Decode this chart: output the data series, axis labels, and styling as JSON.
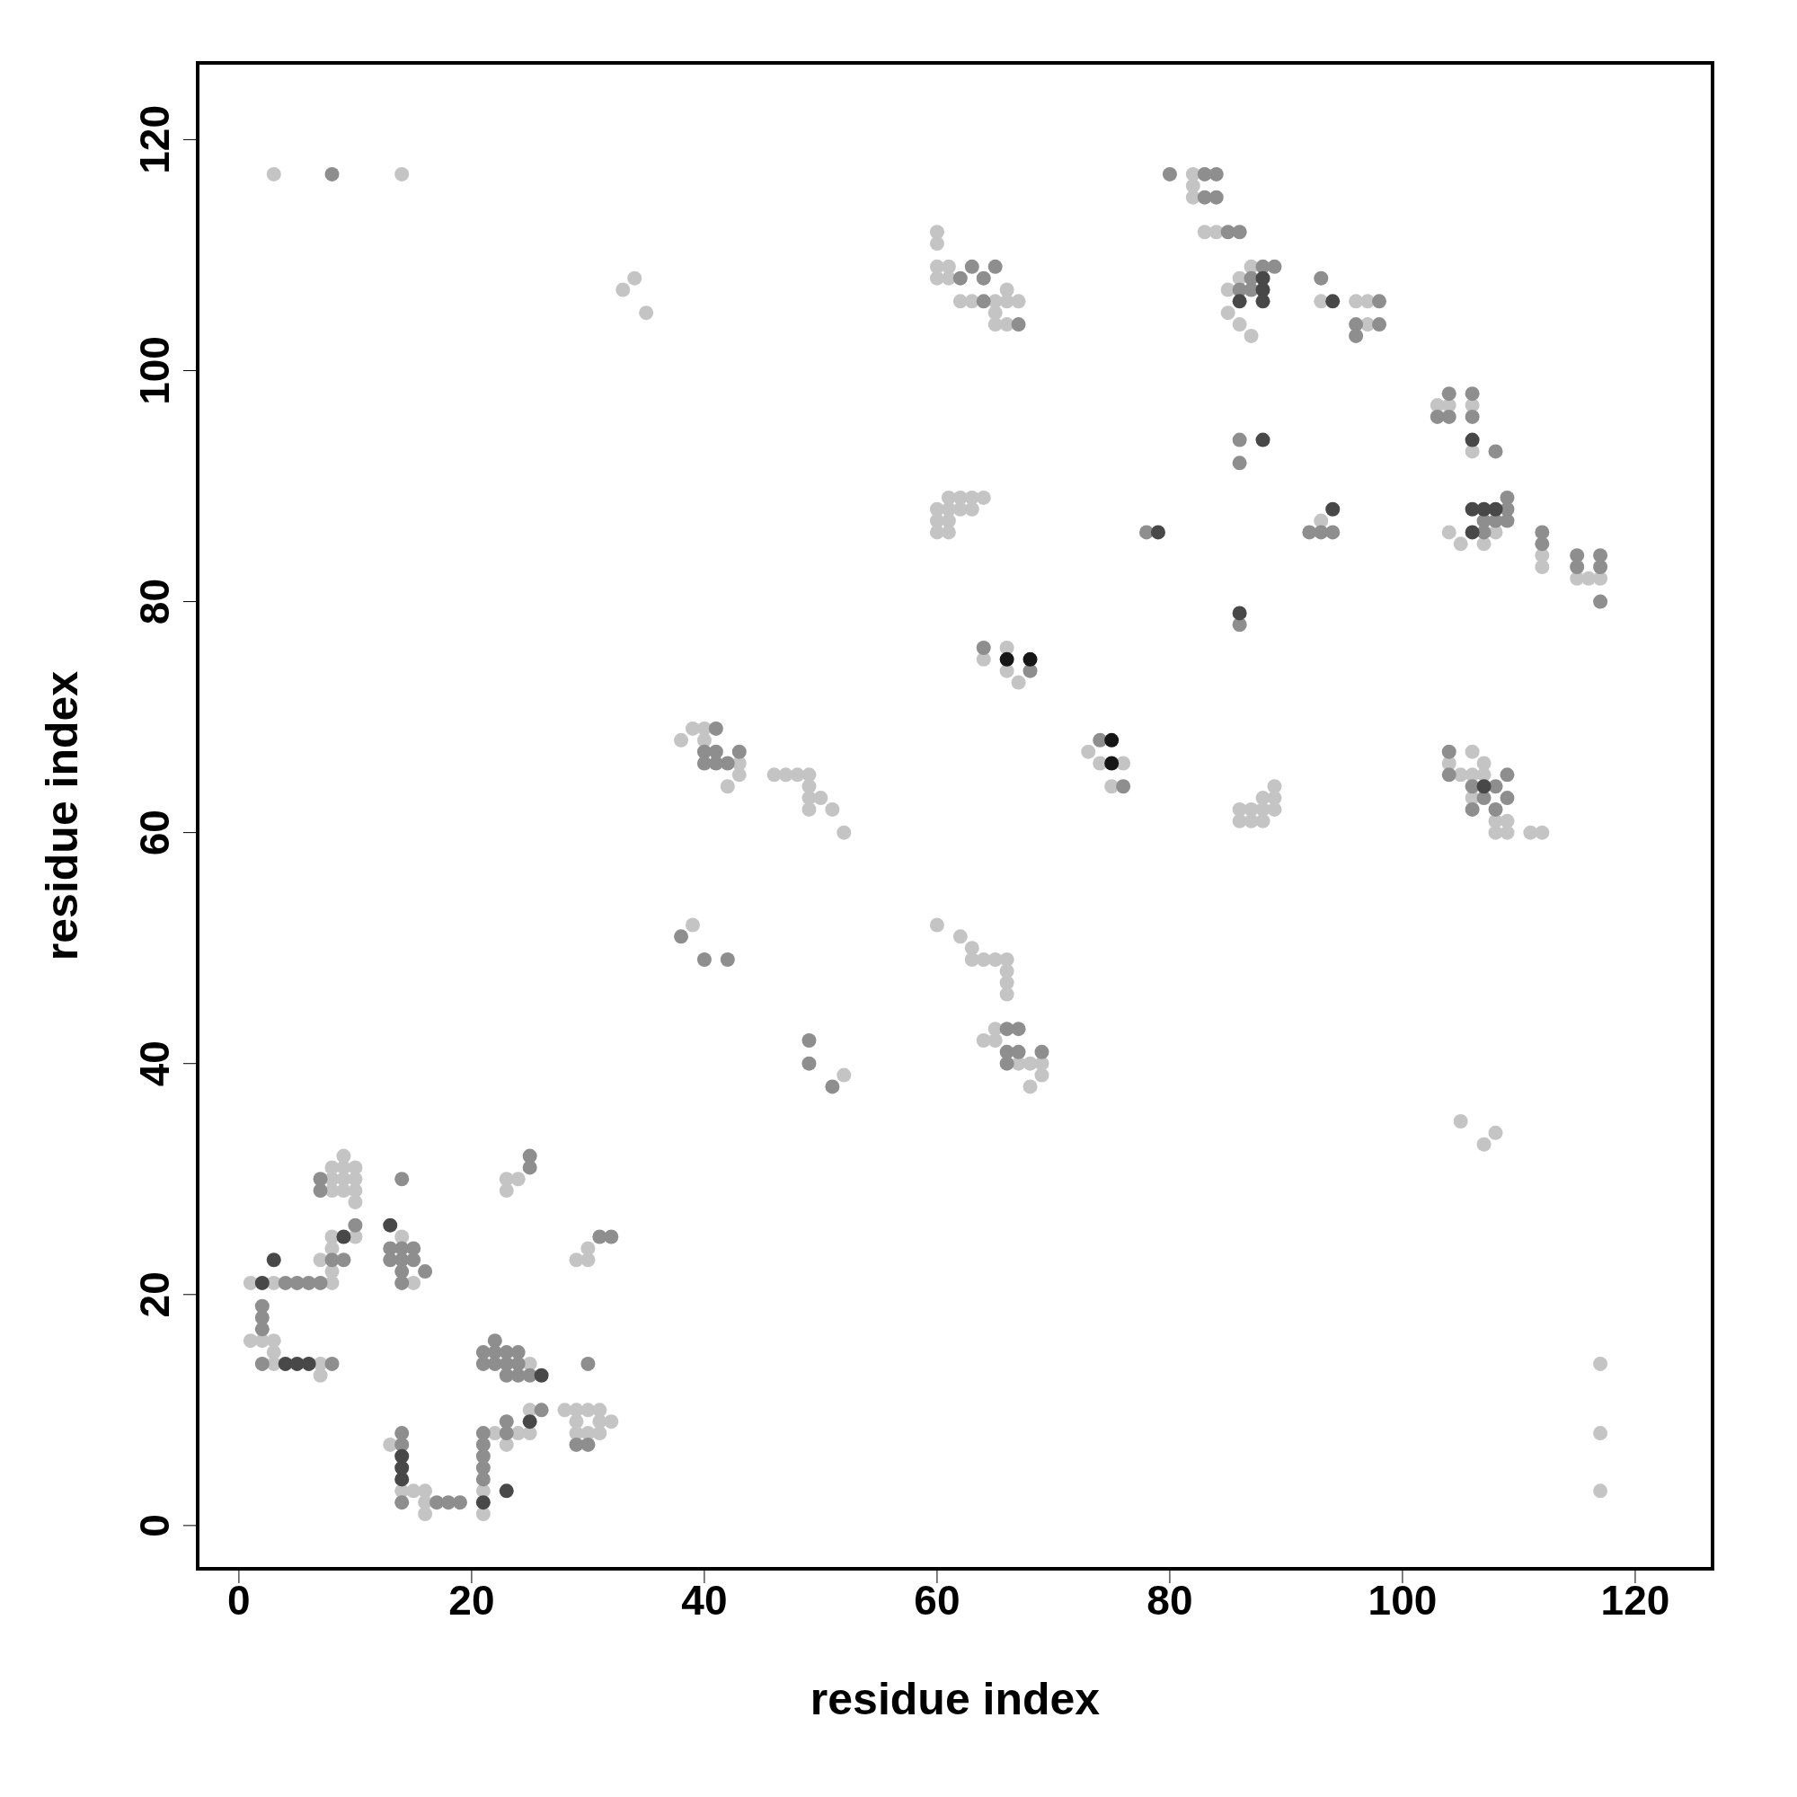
{
  "chart_data": {
    "type": "scatter",
    "xlabel": "residue index",
    "ylabel": "residue index",
    "xlim": [
      -3.7,
      126.8
    ],
    "ylim": [
      -3.9,
      126.8
    ],
    "xticks": [
      0,
      20,
      40,
      60,
      80,
      100,
      120
    ],
    "yticks": [
      0,
      20,
      40,
      60,
      80,
      100,
      120
    ],
    "grid": false,
    "marker": "circle",
    "series": [
      {
        "color": "#c4c4c4",
        "x": [
          3,
          14,
          33,
          34,
          35,
          60,
          60,
          60,
          60,
          61,
          61,
          62,
          63,
          65,
          65,
          65,
          66,
          66,
          66,
          67,
          82,
          82,
          82,
          83,
          84,
          85,
          85,
          86,
          86,
          87,
          93,
          96,
          97,
          97,
          87,
          103,
          104,
          106,
          106,
          104,
          105,
          107,
          108,
          112,
          112,
          115,
          116,
          117,
          93,
          60,
          60,
          60,
          61,
          61,
          61,
          61,
          62,
          62,
          63,
          63,
          64,
          64,
          66,
          66,
          67,
          73,
          74,
          75,
          76,
          38,
          39,
          40,
          40,
          42,
          43,
          43,
          46,
          47,
          48,
          49,
          49,
          49,
          49,
          50,
          51,
          52,
          86,
          86,
          87,
          87,
          88,
          88,
          88,
          89,
          89,
          89,
          104,
          105,
          106,
          106,
          106,
          107,
          107,
          108,
          108,
          109,
          109,
          111,
          112,
          39,
          60,
          62,
          63,
          63,
          64,
          65,
          66,
          66,
          66,
          66,
          64,
          65,
          65,
          67,
          68,
          68,
          69,
          69,
          52,
          105,
          107,
          108,
          117,
          117,
          117,
          1,
          3,
          8,
          1,
          2,
          3,
          3,
          3,
          7,
          7,
          8,
          8,
          8,
          9,
          9,
          9,
          9,
          10,
          10,
          10,
          10,
          8,
          8,
          10,
          7,
          8,
          14,
          15,
          25,
          23,
          23,
          24,
          29,
          30,
          30,
          28,
          29,
          29,
          29,
          30,
          30,
          31,
          31,
          31,
          32,
          25,
          23,
          24,
          25,
          22,
          13,
          14,
          15,
          16,
          16,
          16,
          21,
          21
        ],
        "values": [
          117,
          117,
          107,
          108,
          105,
          112,
          111,
          109,
          108,
          109,
          108,
          106,
          106,
          106,
          105,
          104,
          107,
          106,
          104,
          106,
          117,
          116,
          115,
          112,
          112,
          107,
          105,
          108,
          104,
          109,
          106,
          106,
          106,
          104,
          103,
          97,
          97,
          97,
          93,
          86,
          85,
          85,
          86,
          84,
          83,
          82,
          82,
          82,
          87,
          88,
          87,
          86,
          89,
          88,
          87,
          86,
          89,
          88,
          89,
          88,
          89,
          75,
          76,
          74,
          73,
          67,
          66,
          64,
          66,
          68,
          69,
          69,
          68,
          64,
          66,
          65,
          65,
          65,
          65,
          65,
          64,
          63,
          62,
          63,
          62,
          60,
          62,
          61,
          62,
          61,
          63,
          62,
          61,
          64,
          63,
          62,
          66,
          65,
          67,
          65,
          63,
          66,
          65,
          61,
          60,
          61,
          60,
          60,
          60,
          52,
          52,
          51,
          50,
          49,
          49,
          49,
          49,
          48,
          47,
          46,
          42,
          42,
          43,
          40,
          40,
          38,
          40,
          39,
          39,
          35,
          33,
          34,
          14,
          8,
          3,
          21,
          21,
          21,
          16,
          16,
          16,
          15,
          14,
          14,
          13,
          31,
          30,
          29,
          32,
          31,
          30,
          29,
          31,
          30,
          29,
          28,
          25,
          24,
          25,
          23,
          22,
          25,
          21,
          14,
          30,
          29,
          30,
          23,
          23,
          24,
          10,
          10,
          9,
          8,
          10,
          8,
          10,
          9,
          8,
          9,
          10,
          7,
          8,
          8,
          8,
          7,
          3,
          3,
          3,
          2,
          1,
          3,
          1
        ]
      },
      {
        "color": "#8e8e8e",
        "x": [
          8,
          62,
          63,
          64,
          64,
          65,
          67,
          80,
          83,
          84,
          83,
          84,
          85,
          86,
          86,
          87,
          87,
          88,
          89,
          93,
          96,
          96,
          98,
          98,
          86,
          86,
          103,
          104,
          104,
          106,
          106,
          108,
          107,
          107,
          108,
          109,
          109,
          109,
          112,
          112,
          115,
          115,
          117,
          117,
          117,
          92,
          93,
          94,
          78,
          86,
          64,
          68,
          74,
          76,
          41,
          40,
          40,
          41,
          42,
          41,
          43,
          104,
          104,
          106,
          106,
          107,
          108,
          108,
          109,
          109,
          38,
          40,
          42,
          66,
          66,
          66,
          67,
          67,
          69,
          49,
          49,
          51,
          4,
          5,
          6,
          7,
          2,
          2,
          2,
          2,
          8,
          7,
          7,
          8,
          9,
          10,
          13,
          13,
          14,
          14,
          14,
          14,
          14,
          15,
          15,
          16,
          21,
          21,
          22,
          22,
          22,
          23,
          23,
          23,
          24,
          24,
          24,
          25,
          25,
          25,
          31,
          32,
          30,
          29,
          30,
          26,
          23,
          23,
          14,
          14,
          14,
          17,
          18,
          19,
          21,
          21,
          21,
          21,
          21
        ],
        "values": [
          117,
          108,
          109,
          108,
          106,
          109,
          104,
          117,
          117,
          117,
          115,
          115,
          112,
          112,
          107,
          108,
          107,
          109,
          109,
          108,
          104,
          103,
          106,
          104,
          94,
          92,
          96,
          98,
          96,
          98,
          96,
          93,
          87,
          86,
          87,
          89,
          88,
          87,
          86,
          85,
          84,
          83,
          84,
          83,
          80,
          86,
          86,
          86,
          86,
          78,
          76,
          74,
          68,
          64,
          69,
          67,
          66,
          66,
          66,
          67,
          67,
          67,
          65,
          64,
          62,
          63,
          64,
          62,
          65,
          63,
          51,
          49,
          49,
          43,
          41,
          40,
          43,
          41,
          41,
          42,
          40,
          38,
          21,
          21,
          21,
          21,
          14,
          19,
          18,
          17,
          14,
          30,
          29,
          23,
          23,
          26,
          24,
          23,
          30,
          24,
          23,
          22,
          21,
          24,
          23,
          22,
          15,
          14,
          16,
          15,
          14,
          15,
          14,
          13,
          15,
          14,
          13,
          13,
          32,
          31,
          25,
          25,
          14,
          7,
          7,
          10,
          9,
          8,
          8,
          7,
          2,
          2,
          2,
          2,
          8,
          7,
          6,
          5,
          4
        ]
      },
      {
        "color": "#484848",
        "x": [
          86,
          88,
          88,
          88,
          94,
          88,
          106,
          106,
          106,
          107,
          108,
          94,
          79,
          86,
          107,
          2,
          3,
          4,
          5,
          6,
          9,
          13,
          26,
          25,
          23,
          14,
          14,
          14,
          21
        ],
        "values": [
          106,
          108,
          107,
          106,
          106,
          94,
          94,
          88,
          86,
          88,
          88,
          88,
          86,
          79,
          64,
          21,
          23,
          14,
          14,
          14,
          25,
          26,
          13,
          9,
          3,
          6,
          5,
          4,
          2
        ]
      },
      {
        "color": "#161616",
        "x": [
          66,
          68,
          75,
          75
        ],
        "values": [
          75,
          75,
          68,
          66
        ]
      }
    ]
  }
}
